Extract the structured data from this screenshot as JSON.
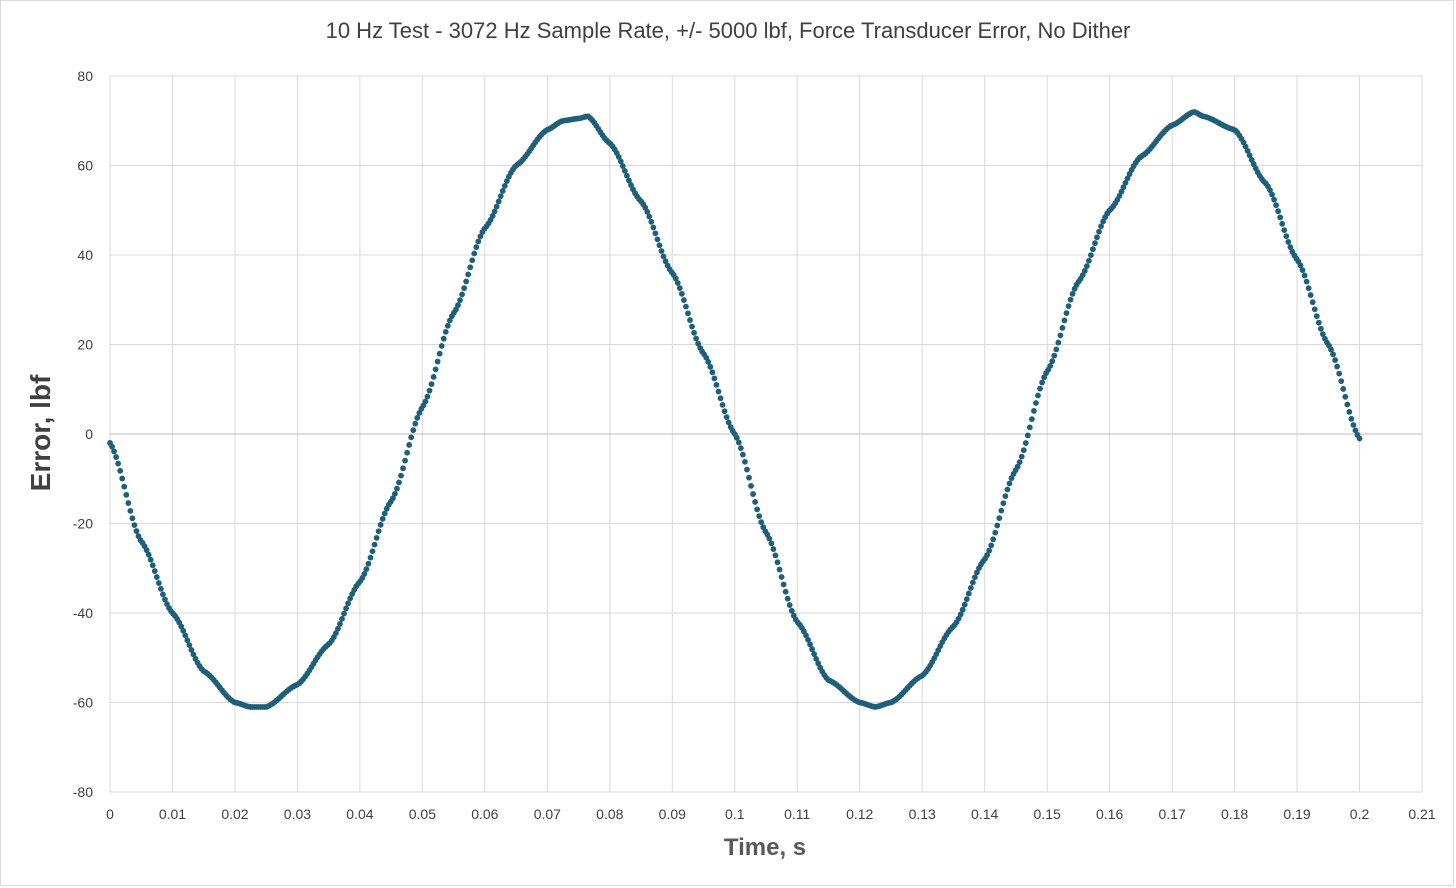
{
  "chart_data": {
    "type": "scatter",
    "title": "10 Hz Test - 3072 Hz Sample Rate, +/- 5000 lbf, Force Transducer Error, No Dither",
    "xlabel": "Time, s",
    "ylabel": "Error, lbf",
    "xlim": [
      0,
      0.21
    ],
    "ylim": [
      -80,
      80
    ],
    "x_ticks": [
      "0",
      "0.01",
      "0.02",
      "0.03",
      "0.04",
      "0.05",
      "0.06",
      "0.07",
      "0.08",
      "0.09",
      "0.1",
      "0.11",
      "0.12",
      "0.13",
      "0.14",
      "0.15",
      "0.16",
      "0.17",
      "0.18",
      "0.19",
      "0.2",
      "0.21"
    ],
    "y_ticks": [
      "80",
      "60",
      "40",
      "20",
      "0",
      "-20",
      "-40",
      "-60",
      "-80"
    ],
    "grid": true,
    "legend": "none",
    "marker_color": "#1f5f7a",
    "series": [
      {
        "x": [
          0.0,
          0.005,
          0.01,
          0.015,
          0.02,
          0.0225,
          0.025,
          0.03,
          0.035,
          0.04,
          0.045,
          0.05,
          0.055,
          0.06,
          0.065,
          0.07,
          0.0725,
          0.075,
          0.0765,
          0.08,
          0.085,
          0.09,
          0.095,
          0.1,
          0.105,
          0.11,
          0.115,
          0.12,
          0.1225,
          0.125,
          0.13,
          0.135,
          0.14,
          0.145,
          0.15,
          0.155,
          0.16,
          0.165,
          0.17,
          0.1735,
          0.175,
          0.18,
          0.185,
          0.19,
          0.195,
          0.2
        ],
        "y": [
          -2,
          -24,
          -40,
          -53,
          -60,
          -61,
          -61,
          -56,
          -47,
          -33,
          -15,
          6,
          27,
          46,
          60,
          68,
          70,
          70.5,
          71,
          65,
          52,
          36,
          18,
          0,
          -22,
          -42,
          -55,
          -60,
          -61,
          -60,
          -54,
          -43,
          -28,
          -8,
          14,
          34,
          50,
          62,
          69,
          72,
          71,
          68,
          56,
          39,
          20,
          -1
        ]
      }
    ]
  }
}
